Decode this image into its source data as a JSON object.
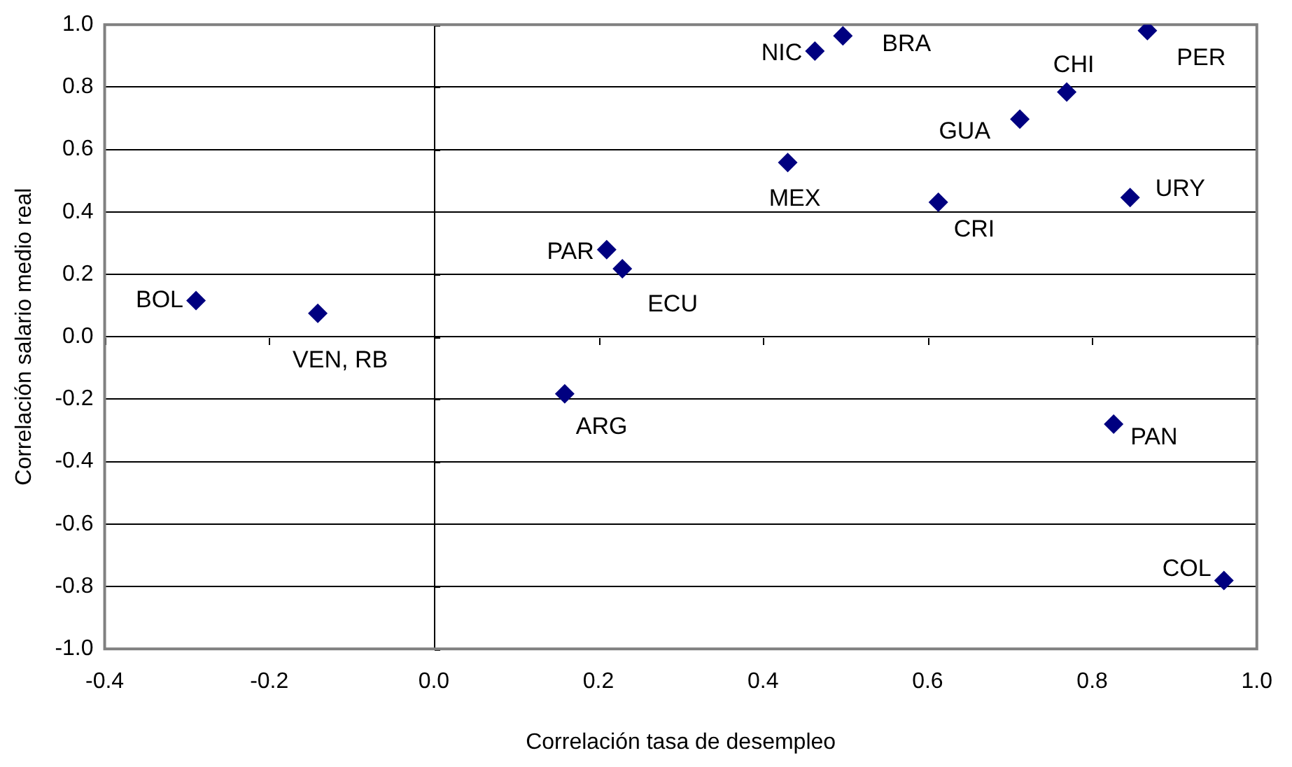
{
  "chart_data": {
    "type": "scatter",
    "xlabel": "Correlación tasa de desempleo",
    "ylabel": "Correlación salario medio real",
    "xlim": [
      -0.4,
      1.0
    ],
    "xticks": [
      {
        "value": -0.4,
        "label": "-0.4"
      },
      {
        "value": -0.2,
        "label": "-0.2"
      },
      {
        "value": 0,
        "label": "0.0"
      },
      {
        "value": 0.2,
        "label": "0.2"
      },
      {
        "value": 0.4,
        "label": "0.4"
      },
      {
        "value": 0.6,
        "label": "0.6"
      },
      {
        "value": 0.8,
        "label": "0.8"
      },
      {
        "value": 1.0,
        "label": "1.0"
      }
    ],
    "ylim": [
      -1.0,
      1.0
    ],
    "yticks": [
      {
        "value": -1.0,
        "label": "-1.0"
      },
      {
        "value": -0.8,
        "label": "-0.8"
      },
      {
        "value": -0.6,
        "label": "-0.6"
      },
      {
        "value": -0.4,
        "label": "-0.4"
      },
      {
        "value": -0.2,
        "label": "-0.2"
      },
      {
        "value": 0,
        "label": "0.0"
      },
      {
        "value": 0.2,
        "label": "0.2"
      },
      {
        "value": 0.4,
        "label": "0.4"
      },
      {
        "value": 0.6,
        "label": "0.6"
      },
      {
        "value": 0.8,
        "label": "0.8"
      },
      {
        "value": 1.0,
        "label": "1.0"
      }
    ],
    "grid": "y",
    "legend": false,
    "marker": "diamond",
    "ref_lines": [
      {
        "axis": "x",
        "value": 0,
        "color": "#000000"
      }
    ],
    "series": [
      {
        "color": "#000080",
        "x": [
          -0.289,
          -0.141,
          0.21,
          0.229,
          0.159,
          0.463,
          0.497,
          0.43,
          0.613,
          0.712,
          0.769,
          0.867,
          0.846,
          0.826,
          0.96
        ],
        "values": [
          0.116,
          0.075,
          0.279,
          0.218,
          -0.183,
          0.915,
          0.964,
          0.558,
          0.431,
          0.697,
          0.784,
          0.981,
          0.446,
          -0.28,
          -0.781
        ]
      }
    ],
    "annotations": [
      {
        "text": "BOL",
        "x": -0.289,
        "y": 0.116
      },
      {
        "text": "VEN, RB",
        "x": -0.141,
        "y": 0.075
      },
      {
        "text": "PAR",
        "x": 0.21,
        "y": 0.279
      },
      {
        "text": "ECU",
        "x": 0.229,
        "y": 0.218
      },
      {
        "text": "ARG",
        "x": 0.159,
        "y": -0.183
      },
      {
        "text": "NIC",
        "x": 0.463,
        "y": 0.915
      },
      {
        "text": "BRA",
        "x": 0.497,
        "y": 0.964
      },
      {
        "text": "MEX",
        "x": 0.43,
        "y": 0.558
      },
      {
        "text": "CRI",
        "x": 0.613,
        "y": 0.431
      },
      {
        "text": "GUA",
        "x": 0.712,
        "y": 0.697
      },
      {
        "text": "CHI",
        "x": 0.769,
        "y": 0.784
      },
      {
        "text": "PER",
        "x": 0.867,
        "y": 0.981
      },
      {
        "text": "URY",
        "x": 0.846,
        "y": 0.446
      },
      {
        "text": "PAN",
        "x": 0.826,
        "y": -0.28
      },
      {
        "text": "COL",
        "x": 0.96,
        "y": -0.781
      }
    ]
  }
}
